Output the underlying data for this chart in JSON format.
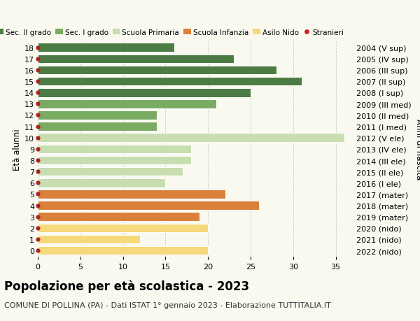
{
  "ages": [
    18,
    17,
    16,
    15,
    14,
    13,
    12,
    11,
    10,
    9,
    8,
    7,
    6,
    5,
    4,
    3,
    2,
    1,
    0
  ],
  "values": [
    16,
    23,
    28,
    31,
    25,
    21,
    14,
    14,
    36,
    18,
    18,
    17,
    15,
    22,
    26,
    19,
    20,
    12,
    20
  ],
  "right_labels": [
    "2004 (V sup)",
    "2005 (IV sup)",
    "2006 (III sup)",
    "2007 (II sup)",
    "2008 (I sup)",
    "2009 (III med)",
    "2010 (II med)",
    "2011 (I med)",
    "2012 (V ele)",
    "2013 (IV ele)",
    "2014 (III ele)",
    "2015 (II ele)",
    "2016 (I ele)",
    "2017 (mater)",
    "2018 (mater)",
    "2019 (mater)",
    "2020 (nido)",
    "2021 (nido)",
    "2022 (nido)"
  ],
  "bar_colors": [
    "#4a7c44",
    "#4a7c44",
    "#4a7c44",
    "#4a7c44",
    "#4a7c44",
    "#7aab62",
    "#7aab62",
    "#7aab62",
    "#c8ddb0",
    "#c8ddb0",
    "#c8ddb0",
    "#c8ddb0",
    "#c8ddb0",
    "#d9813a",
    "#d9813a",
    "#d9813a",
    "#f5d97a",
    "#f5d97a",
    "#f5d97a"
  ],
  "legend_labels": [
    "Sec. II grado",
    "Sec. I grado",
    "Scuola Primaria",
    "Scuola Infanzia",
    "Asilo Nido",
    "Stranieri"
  ],
  "legend_colors": [
    "#4a7c44",
    "#7aab62",
    "#c8ddb0",
    "#d9813a",
    "#f5d97a",
    "#cc2222"
  ],
  "dot_color": "#aa2222",
  "title": "Popolazione per età scolastica - 2023",
  "subtitle": "COMUNE DI POLLINA (PA) - Dati ISTAT 1° gennaio 2023 - Elaborazione TUTTITALIA.IT",
  "ylabel_left": "Età alunni",
  "ylabel_right": "Anni di nascita",
  "xlim": [
    0,
    37
  ],
  "xticks": [
    0,
    5,
    10,
    15,
    20,
    25,
    30,
    35
  ],
  "bar_height": 0.78,
  "background_color": "#f9f9f0",
  "grid_color": "#cccccc",
  "title_fontsize": 12,
  "subtitle_fontsize": 8,
  "tick_fontsize": 8,
  "legend_fontsize": 7.5
}
